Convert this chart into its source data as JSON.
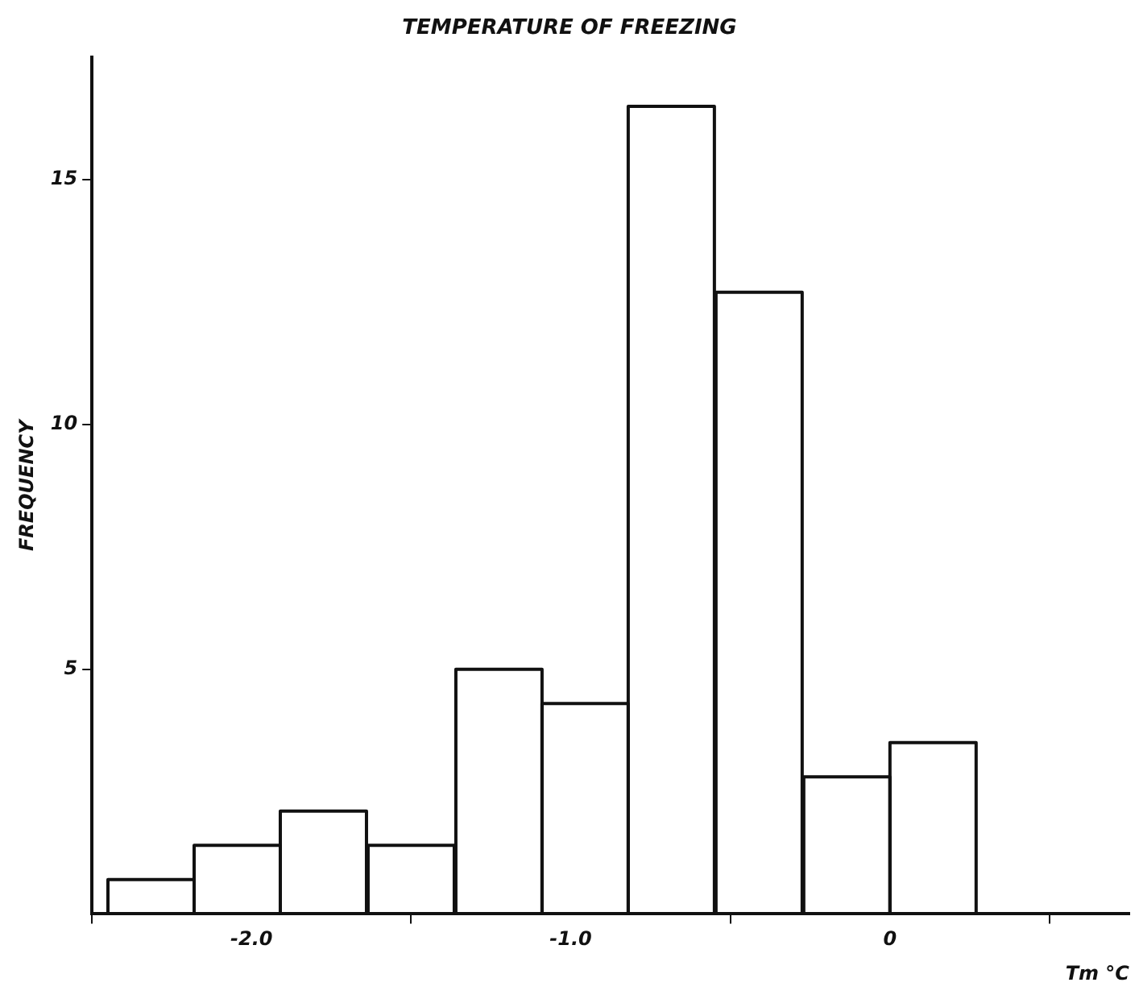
{
  "chart_data": {
    "type": "histogram",
    "title": "TEMPERATURE OF FREEZING",
    "xlabel": "Tm °C",
    "ylabel": "FREQUENCY",
    "bins": [
      -2.45,
      -2.18,
      -1.91,
      -1.64,
      -1.36,
      -1.09,
      -0.82,
      -0.55,
      -0.27,
      0,
      0.27
    ],
    "values": [
      0.7,
      1.4,
      2.1,
      1.4,
      5.0,
      4.3,
      16.5,
      12.7,
      2.8,
      3.5
    ],
    "color": "#111111",
    "xlim": [
      -2.5,
      0.75
    ],
    "xticks": [
      {
        "value": -2,
        "label": "-2.0"
      },
      {
        "value": -1,
        "label": "-1.0"
      },
      0
    ],
    "ylim": [
      0,
      17.5
    ],
    "yticks": [
      5,
      10,
      15
    ],
    "grid": false,
    "legend": false
  }
}
